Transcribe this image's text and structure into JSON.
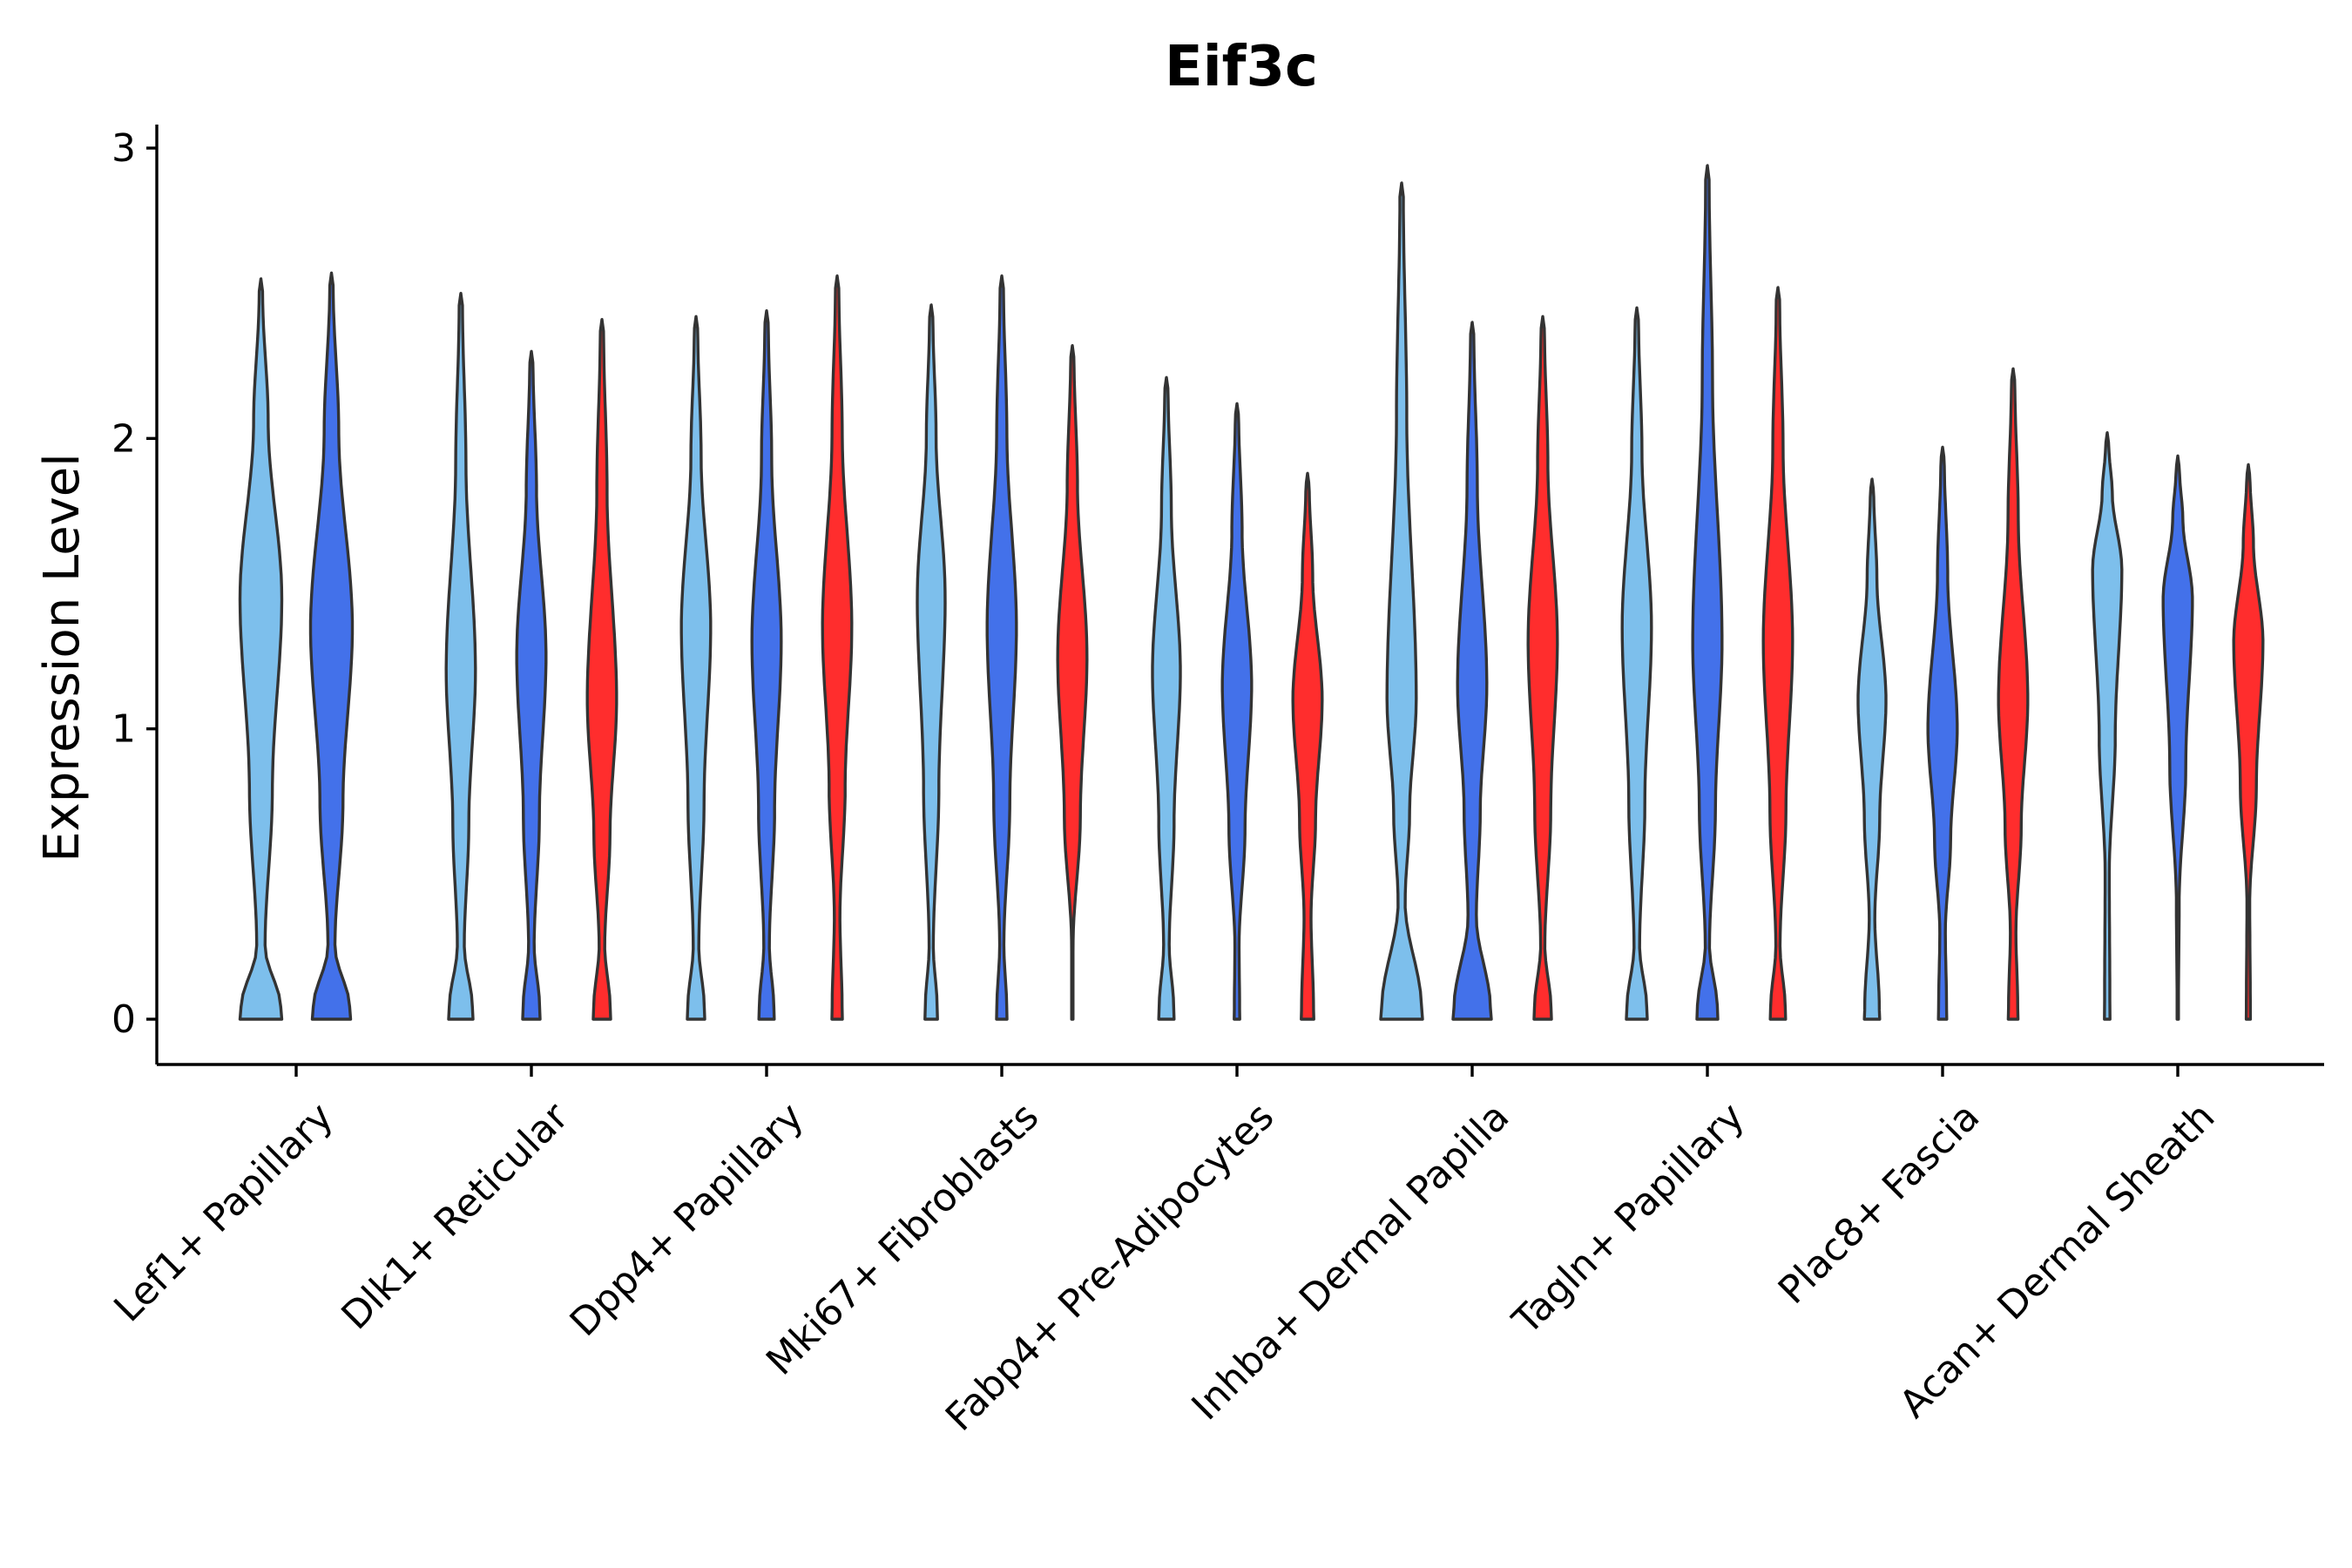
{
  "chart_data": {
    "type": "violin",
    "title": "Eif3c",
    "xlabel": "",
    "ylabel": "Expression Level",
    "ylim": [
      -0.15,
      3.1
    ],
    "yticks": [
      0,
      1,
      2,
      3
    ],
    "categories": [
      "Lef1+ Papillary",
      "Dlk1+ Reticular",
      "Dpp4+ Papillary",
      "Mki67+ Fibroblasts",
      "Fabp4+ Pre-Adipocytes",
      "Inhba+ Dermal Papilla",
      "Tagln+ Papillary",
      "Plac8+ Fascia",
      "Acan+ Dermal Sheath"
    ],
    "series": [
      {
        "name": "group-1",
        "color": "#7dbfec"
      },
      {
        "name": "group-2",
        "color": "#4371ea"
      },
      {
        "name": "group-3",
        "color": "#ff2d2d"
      }
    ],
    "violins": [
      {
        "category": "Lef1+ Papillary",
        "series": "group-1",
        "min": 0,
        "max": 2.55,
        "zero_width": 0.6,
        "mode": 1.45,
        "mode_width": 0.6,
        "neck_width": 0.12,
        "neck_y": 0.25
      },
      {
        "category": "Lef1+ Papillary",
        "series": "group-2",
        "min": 0,
        "max": 2.57,
        "zero_width": 0.55,
        "mode": 1.35,
        "mode_width": 0.6,
        "neck_width": 0.1,
        "neck_y": 0.25
      },
      {
        "category": "Dlk1+ Reticular",
        "series": "group-1",
        "min": 0,
        "max": 2.5,
        "zero_width": 0.35,
        "mode": 1.2,
        "mode_width": 0.42,
        "neck_width": 0.1,
        "neck_y": 0.25
      },
      {
        "category": "Dlk1+ Reticular",
        "series": "group-2",
        "min": 0,
        "max": 2.3,
        "zero_width": 0.25,
        "mode": 1.25,
        "mode_width": 0.42,
        "neck_width": 0.08,
        "neck_y": 0.25
      },
      {
        "category": "Dlk1+ Reticular",
        "series": "group-3",
        "min": 0,
        "max": 2.41,
        "zero_width": 0.25,
        "mode": 1.1,
        "mode_width": 0.42,
        "neck_width": 0.08,
        "neck_y": 0.25
      },
      {
        "category": "Dpp4+ Papillary",
        "series": "group-1",
        "min": 0,
        "max": 2.42,
        "zero_width": 0.25,
        "mode": 1.35,
        "mode_width": 0.42,
        "neck_width": 0.08,
        "neck_y": 0.25
      },
      {
        "category": "Dpp4+ Papillary",
        "series": "group-2",
        "min": 0,
        "max": 2.44,
        "zero_width": 0.22,
        "mode": 1.3,
        "mode_width": 0.42,
        "neck_width": 0.08,
        "neck_y": 0.25
      },
      {
        "category": "Dpp4+ Papillary",
        "series": "group-3",
        "min": 0,
        "max": 2.56,
        "zero_width": 0.15,
        "mode": 1.35,
        "mode_width": 0.42,
        "neck_width": 0.08,
        "neck_y": 0.35
      },
      {
        "category": "Mki67+ Fibroblasts",
        "series": "group-1",
        "min": 0,
        "max": 2.46,
        "zero_width": 0.18,
        "mode": 1.45,
        "mode_width": 0.4,
        "neck_width": 0.06,
        "neck_y": 0.25
      },
      {
        "category": "Mki67+ Fibroblasts",
        "series": "group-2",
        "min": 0,
        "max": 2.56,
        "zero_width": 0.15,
        "mode": 1.35,
        "mode_width": 0.42,
        "neck_width": 0.06,
        "neck_y": 0.25
      },
      {
        "category": "Mki67+ Fibroblasts",
        "series": "group-3",
        "min": 0,
        "max": 2.32,
        "zero_width": 0.02,
        "mode": 1.25,
        "mode_width": 0.42,
        "neck_width": 0.02,
        "neck_y": 0.25
      },
      {
        "category": "Fabp4+ Pre-Adipocytes",
        "series": "group-1",
        "min": 0,
        "max": 2.21,
        "zero_width": 0.22,
        "mode": 1.2,
        "mode_width": 0.4,
        "neck_width": 0.08,
        "neck_y": 0.25
      },
      {
        "category": "Fabp4+ Pre-Adipocytes",
        "series": "group-2",
        "min": 0,
        "max": 2.12,
        "zero_width": 0.08,
        "mode": 1.15,
        "mode_width": 0.42,
        "neck_width": 0.06,
        "neck_y": 0.25
      },
      {
        "category": "Fabp4+ Pre-Adipocytes",
        "series": "group-3",
        "min": 0,
        "max": 1.88,
        "zero_width": 0.18,
        "mode": 1.1,
        "mode_width": 0.42,
        "neck_width": 0.1,
        "neck_y": 0.35
      },
      {
        "category": "Inhba+ Dermal Papilla",
        "series": "group-1",
        "min": 0,
        "max": 2.88,
        "zero_width": 0.6,
        "mode": 1.1,
        "mode_width": 0.42,
        "neck_width": 0.1,
        "neck_y": 0.4
      },
      {
        "category": "Inhba+ Dermal Papilla",
        "series": "group-2",
        "min": 0,
        "max": 2.4,
        "zero_width": 0.55,
        "mode": 1.15,
        "mode_width": 0.42,
        "neck_width": 0.12,
        "neck_y": 0.35
      },
      {
        "category": "Inhba+ Dermal Papilla",
        "series": "group-3",
        "min": 0,
        "max": 2.42,
        "zero_width": 0.25,
        "mode": 1.3,
        "mode_width": 0.42,
        "neck_width": 0.06,
        "neck_y": 0.25
      },
      {
        "category": "Tagln+ Papillary",
        "series": "group-1",
        "min": 0,
        "max": 2.45,
        "zero_width": 0.3,
        "mode": 1.35,
        "mode_width": 0.42,
        "neck_width": 0.08,
        "neck_y": 0.25
      },
      {
        "category": "Tagln+ Papillary",
        "series": "group-2",
        "min": 0,
        "max": 2.94,
        "zero_width": 0.3,
        "mode": 1.3,
        "mode_width": 0.42,
        "neck_width": 0.06,
        "neck_y": 0.25
      },
      {
        "category": "Tagln+ Papillary",
        "series": "group-3",
        "min": 0,
        "max": 2.52,
        "zero_width": 0.22,
        "mode": 1.3,
        "mode_width": 0.42,
        "neck_width": 0.06,
        "neck_y": 0.25
      },
      {
        "category": "Plac8+ Fascia",
        "series": "group-1",
        "min": 0,
        "max": 1.86,
        "zero_width": 0.22,
        "mode": 1.1,
        "mode_width": 0.4,
        "neck_width": 0.08,
        "neck_y": 0.35
      },
      {
        "category": "Plac8+ Fascia",
        "series": "group-2",
        "min": 0,
        "max": 1.97,
        "zero_width": 0.12,
        "mode": 1.0,
        "mode_width": 0.42,
        "neck_width": 0.08,
        "neck_y": 0.3
      },
      {
        "category": "Plac8+ Fascia",
        "series": "group-3",
        "min": 0,
        "max": 2.24,
        "zero_width": 0.14,
        "mode": 1.1,
        "mode_width": 0.42,
        "neck_width": 0.08,
        "neck_y": 0.3
      },
      {
        "category": "Acan+ Dermal Sheath",
        "series": "group-1",
        "min": 0,
        "max": 2.02,
        "zero_width": 0.08,
        "mode": 1.55,
        "mode_width": 0.42,
        "neck_width": 0.06,
        "neck_y": 0.5
      },
      {
        "category": "Acan+ Dermal Sheath",
        "series": "group-2",
        "min": 0,
        "max": 1.94,
        "zero_width": 0.02,
        "mode": 1.45,
        "mode_width": 0.42,
        "neck_width": 0.04,
        "neck_y": 0.4
      },
      {
        "category": "Acan+ Dermal Sheath",
        "series": "group-3",
        "min": 0,
        "max": 1.91,
        "zero_width": 0.06,
        "mode": 1.3,
        "mode_width": 0.42,
        "neck_width": 0.04,
        "neck_y": 0.4
      }
    ]
  }
}
